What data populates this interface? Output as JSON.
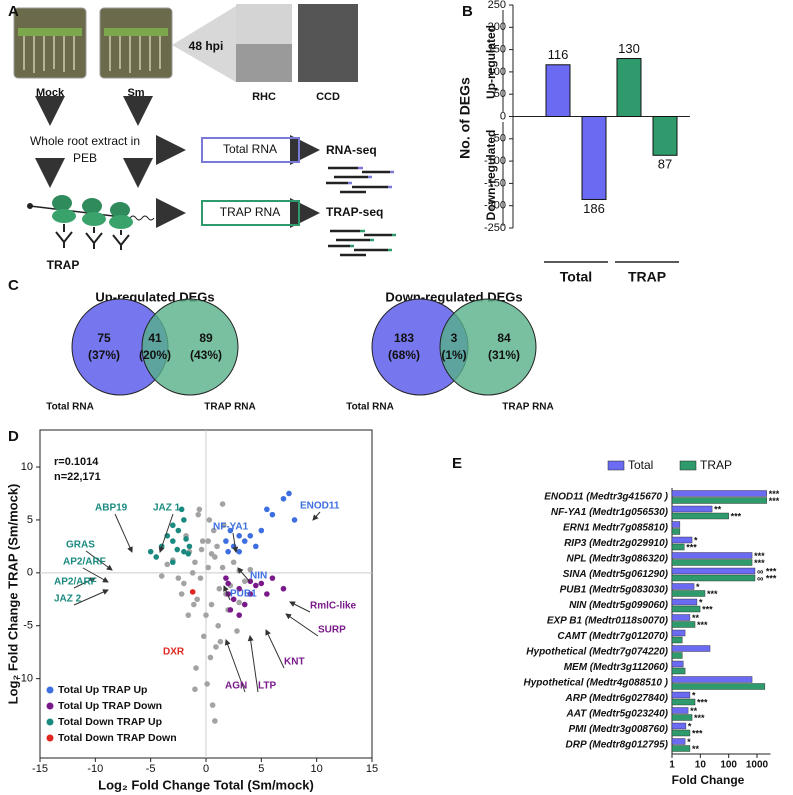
{
  "panel_labels": [
    "A",
    "B",
    "C",
    "D",
    "E"
  ],
  "panel_a": {
    "conditions": [
      "Mock",
      "Sm"
    ],
    "time": "48 hpi",
    "images": [
      "RHC",
      "CCD"
    ],
    "extract": [
      "Whole root extract in",
      "PEB"
    ],
    "total_rna": "Total RNA",
    "rna_seq": "RNA-seq",
    "trap_rna": "TRAP RNA",
    "trap_seq": "TRAP-seq",
    "trap": "TRAP"
  },
  "panel_c": {
    "venns": [
      {
        "title": "Up-regulated DEGs",
        "left": "Total RNA",
        "right": "TRAP RNA",
        "regions": [
          {
            "count": "75",
            "percent": "(37%)"
          },
          {
            "count": "41",
            "percent": "(20%)"
          },
          {
            "count": "89",
            "percent": "(43%)"
          }
        ]
      },
      {
        "title": "Down-regulated DEGs",
        "left": "Total RNA",
        "right": "TRAP RNA",
        "regions": [
          {
            "count": "183",
            "percent": "(68%)"
          },
          {
            "count": "3",
            "percent": "(1%)"
          },
          {
            "count": "84",
            "percent": "(31%)"
          }
        ]
      }
    ]
  },
  "chart_data": [
    {
      "type": "bar",
      "ylabel": "No. of DEGs",
      "categories": [
        "Total",
        "TRAP"
      ],
      "colors": [
        "#6a6af2",
        "#2f9a6c"
      ],
      "series": [
        {
          "name": "Up-regulated",
          "values": [
            116,
            130
          ]
        },
        {
          "name": "Down-regulated",
          "values": [
            -186,
            -87
          ],
          "value_labels": [
            "186",
            "87"
          ]
        }
      ],
      "ylim": [
        -250,
        250
      ],
      "yticks": [
        -250,
        -200,
        -150,
        -100,
        -50,
        0,
        50,
        100,
        150,
        200,
        250
      ]
    },
    {
      "type": "scatter",
      "stats": [
        "r=0.1014",
        "n=22,171"
      ],
      "xlabel": "Log₂ Fold Change Total (Sm/mock)",
      "ylabel": "Log₂ Fold Change TRAP (Sm/mock)",
      "xlim": [
        -15,
        15
      ],
      "xticks": [
        -15,
        -10,
        -5,
        0,
        5,
        10,
        15
      ],
      "ylim": [
        -17.5,
        13.5
      ],
      "yticks": [
        -10,
        -5,
        0,
        5,
        10
      ],
      "legend": "lower left",
      "series": [
        {
          "color": "#a3a3a3",
          "x": [
            0.2,
            -0.5,
            0.8,
            -1,
            1.2,
            -1.5,
            0.5,
            -0.3,
            1.8,
            -2,
            2.5,
            -2.5,
            0,
            0.7,
            -0.8,
            1,
            -1.2,
            1.5,
            -0.2,
            0.3,
            2,
            -1.8,
            3,
            -3,
            0.4,
            -0.6,
            1.1,
            -1.1,
            0.9,
            -0.4,
            2.2,
            -2.2,
            0.1,
            1.6,
            -1.6,
            0.6,
            -0.9,
            3.5,
            -3.5,
            0.2,
            1.3,
            -0.7,
            4,
            -4,
            0.8,
            2.8,
            1.5,
            -1,
            0.5,
            3
          ],
          "y": [
            0.5,
            -0.5,
            1.5,
            1,
            -1.5,
            2,
            -3,
            3,
            -2,
            -1,
            1,
            -0.5,
            -4,
            4,
            -2.5,
            2.5,
            0,
            0.5,
            -6,
            5,
            -3.5,
            3.5,
            0.2,
            1.2,
            -8,
            6,
            -5,
            -3,
            -7,
            2.2,
            -1.2,
            -2,
            -10.5,
            4.5,
            -4,
            -12.5,
            -9,
            -0.8,
            0.8,
            3,
            -6.5,
            5.5,
            0.3,
            -0.3,
            -14,
            -5.5,
            6.5,
            -11,
            1.8,
            -2.8
          ]
        },
        {
          "name": "Total Up TRAP Up",
          "color": "#3d6fe0",
          "x": [
            7.5,
            7,
            8,
            6,
            5,
            4,
            3.5,
            3,
            2.5,
            2,
            1.8,
            4.5,
            5.5,
            3,
            2.2
          ],
          "y": [
            7.5,
            7,
            5,
            5.5,
            4,
            3.5,
            3,
            3.5,
            2.5,
            2,
            3,
            2.5,
            6,
            2,
            4
          ]
        },
        {
          "name": "Total Up TRAP Down",
          "color": "#7a1a8a",
          "x": [
            2,
            3,
            4,
            5,
            6,
            3.5,
            2.5,
            4.5,
            7,
            1.8,
            2.2,
            3,
            5.5,
            2,
            4
          ],
          "y": [
            -1,
            -1.5,
            -2,
            -1,
            -0.5,
            -3,
            -2.5,
            -1.2,
            -1.5,
            -0.5,
            -3.5,
            -4,
            -2,
            -2,
            -0.8
          ]
        },
        {
          "name": "Total Down TRAP Up",
          "color": "#1a8a80",
          "x": [
            -2,
            -3,
            -4,
            -5,
            -2.5,
            -3.5,
            -1.5,
            -2,
            -3,
            -4.5,
            -1.8,
            -2.2,
            -3,
            -1.6,
            -2.6
          ],
          "y": [
            2,
            3,
            2.5,
            2,
            4,
            3.5,
            2.5,
            5,
            1,
            1.5,
            3.2,
            6,
            4.5,
            1.8,
            2.2
          ]
        },
        {
          "name": "Total Down TRAP Down",
          "color": "#e0261f",
          "x": [
            -1.2
          ],
          "y": [
            -1.8
          ]
        }
      ],
      "annotations": [
        "ENOD11",
        "NF-YA1",
        "NIN",
        "PUB1",
        "RmlC-like",
        "SURP",
        "KNT",
        "LTP",
        "AGN",
        "DXR",
        "ABP19",
        "JAZ 1",
        "GRAS",
        "AP2/ARF",
        "AP2/ARF",
        "JAZ 2"
      ]
    },
    {
      "type": "hbar",
      "log_scale": true,
      "xlabel": "Fold Change",
      "xlim": [
        1,
        3000
      ],
      "xticks": [
        1,
        10,
        100,
        1000
      ],
      "legend": "upper center",
      "categories": [
        "ENOD11 (Medtr3g415670 )",
        "NF-YA1 (Medtr1g056530)",
        "ERN1 Medtr7g085810)",
        "RIP3 (Medtr2g029910)",
        "NPL (Medtr3g086320)",
        "SINA (Medtr5g061290)",
        "PUB1 (Medtr5g083030)",
        "NIN (Medtr5g099060)",
        "EXP B1 (Medtr0118s0070)",
        "CAMT (Medtr7g012070)",
        "Hypothetical (Medtr7g074220)",
        "MEM (Medtr3g112060)",
        "Hypothetical (Medtr4g088510 )",
        "ARP (Medtr6g027840)",
        "AAT (Medtr5g023240)",
        "PMI (Medtr3g008760)",
        "DRP (Medtr8g012795)"
      ],
      "series": [
        {
          "name": "Total",
          "color": "#6a6af2",
          "values": [
            2200,
            26,
            1.9,
            5.1,
            670,
            850,
            6,
            7.6,
            4.3,
            2.9,
            22,
            2.5,
            670,
            4.3,
            3.7,
            3.1,
            2.9
          ],
          "significance": [
            "***",
            "**",
            null,
            "*",
            "***",
            "∞ ***",
            "*",
            "*",
            "**",
            null,
            null,
            null,
            null,
            "*",
            "**",
            "*",
            "*"
          ]
        },
        {
          "name": "TRAP",
          "color": "#2f9a6c",
          "values": [
            2200,
            100,
            1.9,
            2.7,
            670,
            850,
            14.6,
            9.8,
            6.5,
            2.3,
            2.3,
            2.9,
            1900,
            6.5,
            5.1,
            4.3,
            4.3
          ],
          "significance": [
            "***",
            "***",
            null,
            "***",
            "***",
            "∞ ***",
            "***",
            "***",
            "***",
            null,
            null,
            null,
            null,
            "***",
            "***",
            "***",
            "**"
          ]
        }
      ]
    }
  ]
}
